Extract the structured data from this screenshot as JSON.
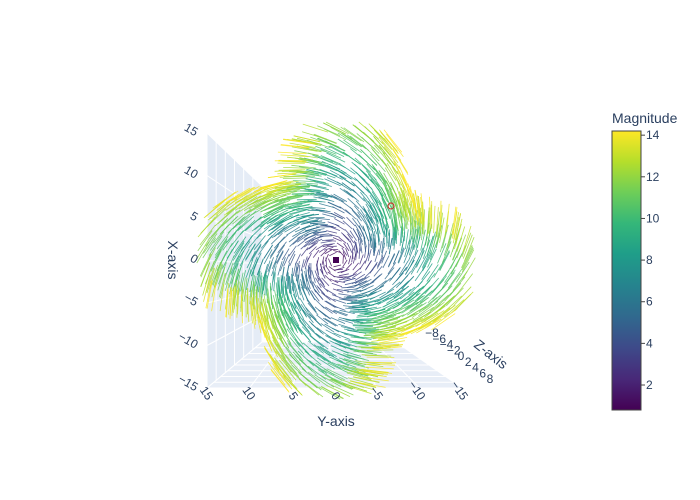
{
  "chart_data": {
    "type": "cone",
    "title": "",
    "scene": {
      "xaxis": {
        "title": "X-axis",
        "ticks": [
          "15",
          "10",
          "5",
          "0",
          "−5",
          "−10",
          "−15"
        ],
        "range": [
          -15,
          15
        ]
      },
      "yaxis": {
        "title": "Y-axis",
        "ticks": [
          "15",
          "10",
          "5",
          "0",
          "−5",
          "−10",
          "−15"
        ],
        "range": [
          -15,
          15
        ]
      },
      "zaxis": {
        "title": "Z-axis",
        "ticks": [
          "−8",
          "−6",
          "−4",
          "−2",
          "0",
          "2",
          "4",
          "6",
          "8"
        ],
        "range": [
          -8,
          8
        ]
      },
      "grid": true
    },
    "field": {
      "description": "swirling vector field around the origin; magnitude increases with radius",
      "radius_range": [
        1,
        15
      ],
      "magnitude_range": [
        1,
        14
      ]
    },
    "colorbar": {
      "title": "Magnitude",
      "colorscale": "Viridis",
      "ticks": [
        "14",
        "12",
        "10",
        "8",
        "6",
        "4",
        "2"
      ],
      "range": [
        0.8,
        14.2
      ]
    }
  }
}
